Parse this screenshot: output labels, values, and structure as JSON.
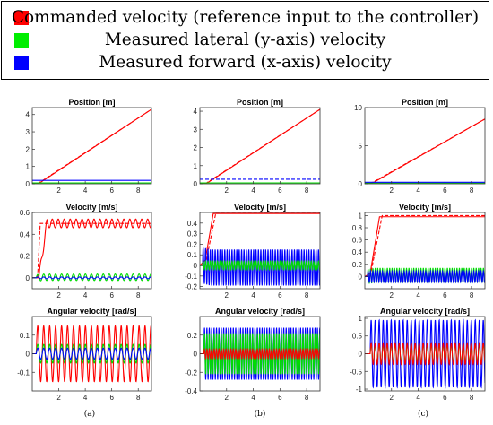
{
  "legend": {
    "items": [
      {
        "label": "Commanded velocity (reference input to the controller)",
        "color": "#ff0000"
      },
      {
        "label": "Measured lateral (y-axis) velocity",
        "color": "#00ee00"
      },
      {
        "label": "Measured forward (x-axis) velocity",
        "color": "#0000ff"
      }
    ]
  },
  "captions": [
    "(a)",
    "(b)",
    "(c)"
  ],
  "chart_data": [
    {
      "panel": "a-position",
      "type": "line",
      "title": "Position [m]",
      "xlim": [
        0,
        9
      ],
      "ylim": [
        0,
        4.4
      ],
      "xticks": [
        2,
        4,
        6,
        8
      ],
      "yticks": [
        0,
        1,
        2,
        3,
        4
      ],
      "series": [
        {
          "color": "#ff0000",
          "dashed": true,
          "x": [
            0,
            0.4,
            9
          ],
          "y": [
            0,
            0,
            4.3
          ]
        },
        {
          "color": "#ff0000",
          "x": [
            0,
            0.5,
            9
          ],
          "y": [
            0,
            0.02,
            4.3
          ]
        },
        {
          "color": "#00dd00",
          "x": [
            0,
            9
          ],
          "y": [
            0.05,
            0.05
          ]
        },
        {
          "color": "#0000ff",
          "x": [
            0,
            9
          ],
          "y": [
            0.2,
            0.2
          ]
        }
      ]
    },
    {
      "panel": "a-velocity",
      "type": "line",
      "title": "Velocity [m/s]",
      "xlim": [
        0,
        9
      ],
      "ylim": [
        -0.1,
        0.6
      ],
      "xticks": [
        2,
        4,
        6,
        8
      ],
      "yticks": [
        0,
        0.2,
        0.4,
        0.6
      ],
      "series": [
        {
          "color": "#ff0000",
          "dashed": true,
          "x": [
            0,
            0.4,
            0.6,
            9
          ],
          "y": [
            0,
            0,
            0.5,
            0.5
          ]
        },
        {
          "color": "#ff0000",
          "mean": 0.5,
          "amp": 0.04,
          "period": 0.45,
          "start": 0.5
        },
        {
          "color": "#00dd00",
          "mean": 0.005,
          "amp": 0.03,
          "period": 0.45,
          "start": 0.3
        },
        {
          "color": "#0000ff",
          "mean": 0.0,
          "amp": 0.008,
          "period": 0.45,
          "start": 0.3
        }
      ]
    },
    {
      "panel": "a-angular",
      "type": "line",
      "title": "Angular velocity [rad/s]",
      "xlim": [
        0,
        9
      ],
      "ylim": [
        -0.2,
        0.2
      ],
      "xticks": [
        2,
        4,
        6,
        8
      ],
      "yticks": [
        -0.1,
        0,
        0.1
      ],
      "series": [
        {
          "color": "#ff0000",
          "mean": 0.0,
          "amp": 0.15,
          "period": 0.45,
          "start": 0.3
        },
        {
          "color": "#00dd00",
          "mean": 0.0,
          "amp": 0.05,
          "period": 0.45,
          "start": 0.3
        },
        {
          "color": "#0000ff",
          "mean": 0.0,
          "amp": 0.03,
          "period": 0.45,
          "start": 0.3
        }
      ]
    },
    {
      "panel": "b-position",
      "type": "line",
      "title": "Position [m]",
      "xlim": [
        0,
        9
      ],
      "ylim": [
        0,
        4.2
      ],
      "xticks": [
        2,
        4,
        6,
        8
      ],
      "yticks": [
        0,
        1,
        2,
        3,
        4
      ],
      "series": [
        {
          "color": "#ff0000",
          "dashed": true,
          "x": [
            0,
            0.4,
            9
          ],
          "y": [
            0,
            0,
            4.1
          ]
        },
        {
          "color": "#ff0000",
          "x": [
            0,
            0.5,
            9
          ],
          "y": [
            0,
            0.02,
            4.1
          ]
        },
        {
          "color": "#00dd00",
          "x": [
            0,
            9
          ],
          "y": [
            0.05,
            0.05
          ]
        },
        {
          "color": "#0000ff",
          "dashed": true,
          "x": [
            0,
            9
          ],
          "y": [
            0.25,
            0.25
          ]
        }
      ]
    },
    {
      "panel": "b-velocity",
      "type": "line",
      "title": "Velocity [m/s]",
      "xlim": [
        0,
        9
      ],
      "ylim": [
        -0.22,
        0.5
      ],
      "xticks": [
        2,
        4,
        6,
        8
      ],
      "yticks": [
        -0.2,
        -0.1,
        0,
        0.1,
        0.2,
        0.3,
        0.4
      ],
      "series": [
        {
          "color": "#ff0000",
          "dashed": true,
          "x": [
            0,
            0.4,
            1.2,
            9
          ],
          "y": [
            0,
            0,
            0.5,
            0.5
          ]
        },
        {
          "color": "#ff0000",
          "x": [
            0,
            0.4,
            1.0,
            9
          ],
          "y": [
            0,
            0.05,
            0.49,
            0.49
          ]
        },
        {
          "color": "#0000ff",
          "mean": -0.02,
          "amp": 0.17,
          "period": 0.18,
          "start": 0.2
        },
        {
          "color": "#00dd00",
          "mean": 0.0,
          "amp": 0.04,
          "period": 0.18,
          "start": 0.2
        }
      ]
    },
    {
      "panel": "b-angular",
      "type": "line",
      "title": "Angular velocity [rad/s]",
      "xlim": [
        0,
        9
      ],
      "ylim": [
        -0.4,
        0.4
      ],
      "xticks": [
        2,
        4,
        6,
        8
      ],
      "yticks": [
        -0.4,
        -0.2,
        0,
        0.2
      ],
      "series": [
        {
          "color": "#0000ff",
          "mean": 0.0,
          "amp": 0.28,
          "period": 0.18,
          "start": 0.3
        },
        {
          "color": "#00dd00",
          "mean": 0.0,
          "amp": 0.22,
          "period": 0.18,
          "start": 0.3
        },
        {
          "color": "#ff0000",
          "mean": 0.0,
          "amp": 0.05,
          "period": 0.18,
          "start": 0.3
        }
      ]
    },
    {
      "panel": "c-position",
      "type": "line",
      "title": "Position [m]",
      "xlim": [
        0,
        9
      ],
      "ylim": [
        0,
        10
      ],
      "xticks": [
        2,
        4,
        6,
        8
      ],
      "yticks": [
        0,
        5,
        10
      ],
      "series": [
        {
          "color": "#ff0000",
          "dashed": true,
          "x": [
            0,
            0.4,
            9
          ],
          "y": [
            0,
            0,
            8.5
          ]
        },
        {
          "color": "#ff0000",
          "x": [
            0,
            0.5,
            9
          ],
          "y": [
            0,
            0.02,
            8.5
          ]
        },
        {
          "color": "#00dd00",
          "x": [
            0,
            9
          ],
          "y": [
            0.1,
            0.1
          ]
        },
        {
          "color": "#0000ff",
          "x": [
            0,
            9
          ],
          "y": [
            0.2,
            0.2
          ]
        }
      ]
    },
    {
      "panel": "c-velocity",
      "type": "line",
      "title": "Velocity [m/s]",
      "xlim": [
        0,
        9
      ],
      "ylim": [
        -0.2,
        1.05
      ],
      "xticks": [
        2,
        4,
        6,
        8
      ],
      "yticks": [
        0,
        0.2,
        0.4,
        0.6,
        0.8,
        1
      ],
      "series": [
        {
          "color": "#ff0000",
          "dashed": true,
          "x": [
            0,
            0.4,
            1.3,
            9
          ],
          "y": [
            0,
            0,
            1.0,
            1.0
          ]
        },
        {
          "color": "#ff0000",
          "x": [
            0,
            0.4,
            1.1,
            9
          ],
          "y": [
            0,
            0.05,
            0.98,
            0.98
          ]
        },
        {
          "color": "#00dd00",
          "mean": 0.02,
          "amp": 0.12,
          "period": 0.18,
          "start": 0.2
        },
        {
          "color": "#0000ff",
          "mean": 0.0,
          "amp": 0.09,
          "period": 0.18,
          "start": 0.2
        }
      ]
    },
    {
      "panel": "c-angular",
      "type": "line",
      "title": "Angular velocity [rad/s]",
      "xlim": [
        0,
        9
      ],
      "ylim": [
        -1.05,
        1.05
      ],
      "xticks": [
        2,
        4,
        6,
        8
      ],
      "yticks": [
        -1,
        -0.5,
        0,
        0.5,
        1
      ],
      "series": [
        {
          "color": "#0000ff",
          "mean": 0.0,
          "amp": 0.95,
          "period": 0.3,
          "start": 0.4
        },
        {
          "color": "#00dd00",
          "mean": 0.0,
          "amp": 0.25,
          "period": 0.3,
          "start": 0.4
        },
        {
          "color": "#ff0000",
          "mean": 0.0,
          "amp": 0.3,
          "period": 0.3,
          "start": 0.4
        }
      ]
    }
  ]
}
